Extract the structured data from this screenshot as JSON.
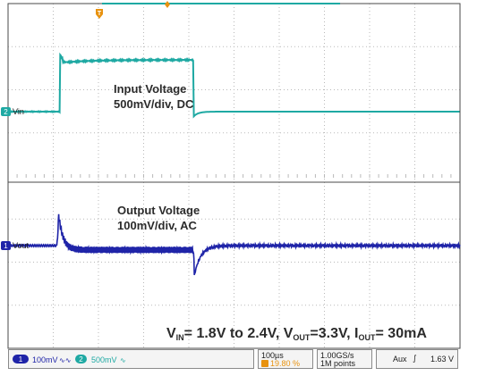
{
  "colors": {
    "ch1": "#1f24a8",
    "ch2": "#1fa9a3",
    "trigger": "#e8920f",
    "grid": "#b9b9b9",
    "frame": "#4a4a4a",
    "label_text": "#1a1a1a"
  },
  "chart_data": {
    "type": "line",
    "x_unit": "µs",
    "time_per_div": "100µs",
    "x_range": [
      0,
      1000
    ],
    "series": [
      {
        "name": "Vin",
        "channel": "2",
        "annotation_title": "Input Voltage",
        "annotation_scale": "500mV/div, DC",
        "color": "#1fa9a3",
        "baseline_v": 1.8,
        "high_v": 2.4,
        "step_up_us": 115,
        "step_down_us": 410,
        "upper_noise_mv": 20
      },
      {
        "name": "Vout",
        "channel": "1",
        "annotation_title": "Output Voltage",
        "annotation_scale": "100mV/div, AC",
        "color": "#1f24a8",
        "baseline_mv": 0,
        "overshoot_mv": 70,
        "overshoot_us": 112,
        "settled_mv": -10,
        "ripple_pp_mv": 15,
        "undershoot_mv": -70,
        "undershoot_us": 412
      }
    ]
  },
  "annotations": {
    "input_title": "Input Voltage",
    "input_scale": "500mV/div, DC",
    "output_title": "Output Voltage",
    "output_scale": "100mV/div, AC",
    "conditions_vin": "V",
    "conditions_vin_sub": "IN",
    "conditions_vin_text": "= 1.8V to 2.4V, V",
    "conditions_vout_sub": "OUT",
    "conditions_vout_text": "=3.3V, I",
    "conditions_iout_sub": "OUT",
    "conditions_iout_text": "= 30mA"
  },
  "markers": {
    "trigger": "T",
    "ch2_marker": "2",
    "ch2_label": "Vin",
    "ch1_marker": "1",
    "ch1_label": "Vout"
  },
  "status_bar": {
    "ch1_num": "1",
    "ch1_scale": "100mV",
    "ch1_coupling": "∿∿",
    "ch2_num": "2",
    "ch2_scale": "500mV",
    "ch2_bw": "∿",
    "timebase": "100µs",
    "trigger_position": "19.80 %",
    "sample_rate": "1.00GS/s",
    "record_length": "1M points",
    "trigger_source": "Aux",
    "trigger_slope": "∫",
    "trigger_level": "1.63 V"
  }
}
